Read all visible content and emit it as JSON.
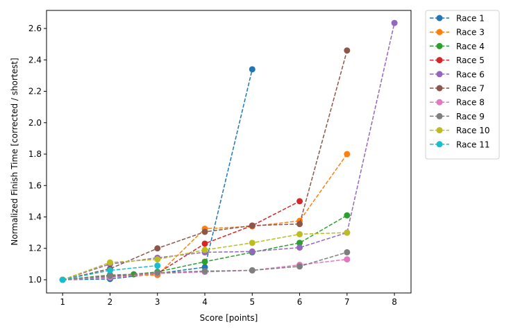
{
  "chart_data": {
    "type": "line",
    "title": "",
    "xlabel": "Score [points]",
    "ylabel": "Normalized Finish Time [corrected / shortest]",
    "xlim": [
      0.66,
      8.35
    ],
    "ylim": [
      0.916,
      2.715
    ],
    "xticks": [
      1,
      2,
      3,
      4,
      5,
      6,
      7,
      8
    ],
    "yticks": [
      1.0,
      1.2,
      1.4,
      1.6,
      1.8,
      2.0,
      2.2,
      2.4,
      2.6
    ],
    "grid": false,
    "legend_placement": "outside-top-right",
    "line_style": "dashed",
    "marker": "circle",
    "series": [
      {
        "name": "Race 1",
        "color": "#1f77b4",
        "x": [
          1,
          2,
          3,
          4,
          5
        ],
        "y": [
          1.0,
          1.005,
          1.04,
          1.08,
          2.34
        ]
      },
      {
        "name": "Race 3",
        "color": "#ff7f0e",
        "x": [
          1,
          2,
          3,
          4,
          5,
          6,
          7
        ],
        "y": [
          1.0,
          1.03,
          1.03,
          1.325,
          1.34,
          1.375,
          1.8
        ]
      },
      {
        "name": "Race 4",
        "color": "#2ca02c",
        "x": [
          1,
          2,
          2.5,
          3,
          4,
          5,
          6,
          7
        ],
        "y": [
          1.0,
          1.03,
          1.035,
          1.05,
          1.115,
          1.175,
          1.235,
          1.41
        ]
      },
      {
        "name": "Race 5",
        "color": "#d62728",
        "x": [
          1,
          2,
          3,
          4,
          5,
          6
        ],
        "y": [
          1.0,
          1.02,
          1.04,
          1.23,
          1.345,
          1.5
        ]
      },
      {
        "name": "Race 6",
        "color": "#9467bd",
        "x": [
          1,
          2,
          3,
          4,
          5,
          6,
          7,
          8
        ],
        "y": [
          1.0,
          1.1,
          1.14,
          1.175,
          1.18,
          1.205,
          1.3,
          2.635
        ]
      },
      {
        "name": "Race 7",
        "color": "#8c564b",
        "x": [
          1,
          2,
          3,
          4,
          5,
          6,
          7
        ],
        "y": [
          1.0,
          1.07,
          1.2,
          1.305,
          1.345,
          1.355,
          2.46
        ]
      },
      {
        "name": "Race 8",
        "color": "#e377c2",
        "x": [
          1,
          2,
          3,
          4,
          5,
          6,
          7
        ],
        "y": [
          1.0,
          1.015,
          1.04,
          1.05,
          1.06,
          1.095,
          1.13
        ]
      },
      {
        "name": "Race 9",
        "color": "#7f7f7f",
        "x": [
          1,
          2,
          3,
          4,
          5,
          6,
          7
        ],
        "y": [
          1.0,
          1.025,
          1.045,
          1.055,
          1.06,
          1.085,
          1.175
        ]
      },
      {
        "name": "Race 10",
        "color": "#bcbd22",
        "x": [
          1,
          2,
          3,
          4,
          5,
          6,
          7
        ],
        "y": [
          1.0,
          1.11,
          1.13,
          1.19,
          1.235,
          1.29,
          1.3
        ]
      },
      {
        "name": "Race 11",
        "color": "#17becf",
        "x": [
          1,
          2,
          3
        ],
        "y": [
          1.0,
          1.06,
          1.09
        ]
      }
    ]
  }
}
